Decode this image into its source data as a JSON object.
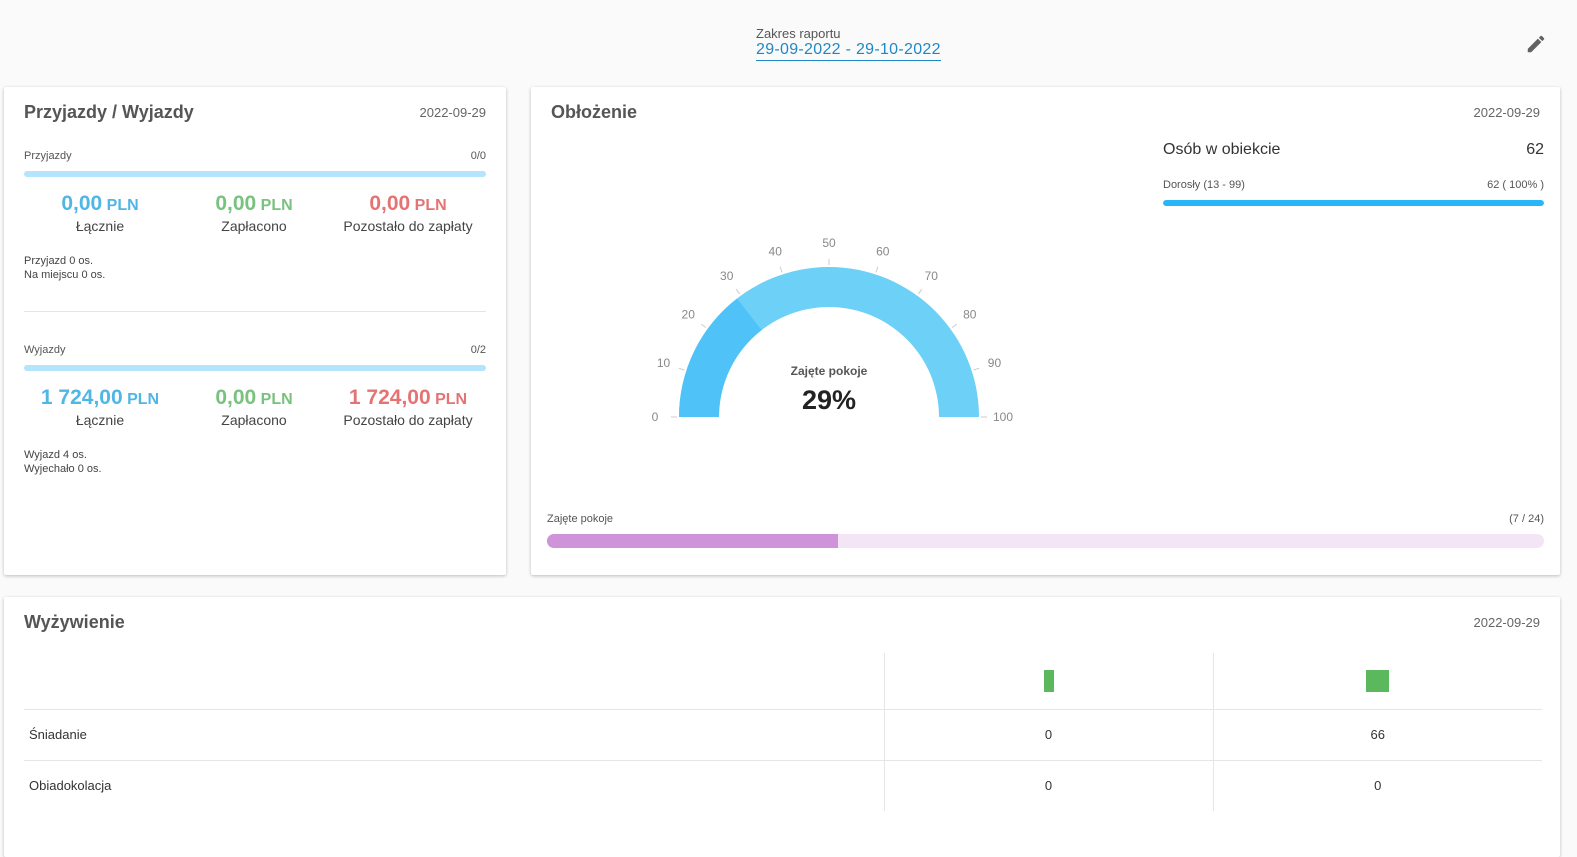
{
  "header": {
    "range_label": "Zakres raportu",
    "range_value": "29-09-2022 - 29-10-2022",
    "edit_icon": "pencil-icon"
  },
  "arrivals": {
    "title": "Przyjazdy / Wyjazdy",
    "date": "2022-09-29",
    "arrivals_section": {
      "label": "Przyjazdy",
      "count": "0/0",
      "total_value": "0,00",
      "total_unit": "PLN",
      "total_label": "Łącznie",
      "paid_value": "0,00",
      "paid_unit": "PLN",
      "paid_label": "Zapłacono",
      "remaining_value": "0,00",
      "remaining_unit": "PLN",
      "remaining_label": "Pozostało do zapłaty",
      "note1": "Przyjazd 0 os.",
      "note2": "Na miejscu 0 os."
    },
    "departures_section": {
      "label": "Wyjazdy",
      "count": "0/2",
      "total_value": "1 724,00",
      "total_unit": "PLN",
      "total_label": "Łącznie",
      "paid_value": "0,00",
      "paid_unit": "PLN",
      "paid_label": "Zapłacono",
      "remaining_value": "1 724,00",
      "remaining_unit": "PLN",
      "remaining_label": "Pozostało do zapłaty",
      "note1": "Wyjazd 4 os.",
      "note2": "Wyjechało 0 os."
    }
  },
  "occupancy": {
    "title": "Obłożenie",
    "date": "2022-09-29",
    "persons_label": "Osób w obiekcie",
    "persons_value": "62",
    "adults_label": "Dorosły (13 - 99)",
    "adults_value": "62 ( 100% )",
    "adults_fraction": 1.0,
    "gauge": {
      "label": "Zajęte pokoje",
      "value_text": "29%",
      "value": 29,
      "ticks": [
        "0",
        "10",
        "20",
        "30",
        "40",
        "50",
        "60",
        "70",
        "80",
        "90",
        "100"
      ],
      "fill_color": "#4fc3f7",
      "track_color": "#6dd0f7"
    },
    "rooms_label": "Zajęte pokoje",
    "rooms_value": "(7 / 24)",
    "rooms_fraction": 0.2917
  },
  "meals": {
    "title": "Wyżywienie",
    "date": "2022-09-29",
    "rows": [
      {
        "name": "Śniadanie",
        "col1": "0",
        "col2": "66"
      },
      {
        "name": "Obiadokolacja",
        "col1": "0",
        "col2": "0"
      }
    ]
  }
}
